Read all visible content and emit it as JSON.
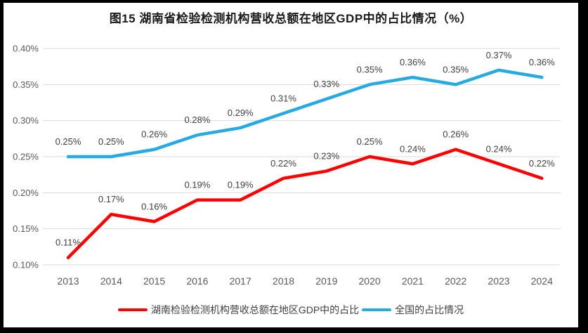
{
  "frame": {
    "border_color": "#000000",
    "canvas_background": "#FFFFFF"
  },
  "chart_data": {
    "type": "line",
    "title": "图15 湖南省检验检测机构营收总额在地区GDP中的占比情况（%）",
    "unit": "%",
    "categories": [
      "2013",
      "2014",
      "2015",
      "2016",
      "2017",
      "2018",
      "2019",
      "2020",
      "2021",
      "2022",
      "2023",
      "2024"
    ],
    "series": [
      {
        "name": "湖南检验检测机构营收总额在地区GDP中的占比",
        "color": "#FF0000",
        "values": [
          0.11,
          0.17,
          0.16,
          0.19,
          0.19,
          0.22,
          0.23,
          0.25,
          0.24,
          0.26,
          0.24,
          0.22
        ],
        "point_labels": [
          "0.11%",
          "0.17%",
          "0.16%",
          "0.19%",
          "0.19%",
          "0.22%",
          "0.23%",
          "0.25%",
          "0.24%",
          "0.26%",
          "0.24%",
          "0.22%"
        ]
      },
      {
        "name": "全国的占比情况",
        "color": "#27A9E1",
        "values": [
          0.25,
          0.25,
          0.26,
          0.28,
          0.29,
          0.31,
          0.33,
          0.35,
          0.36,
          0.35,
          0.37,
          0.36
        ],
        "point_labels": [
          "0.25%",
          "0.25%",
          "0.26%",
          "0.28%",
          "0.29%",
          "0.31%",
          "0.33%",
          "0.35%",
          "0.36%",
          "0.35%",
          "0.37%",
          "0.36%"
        ]
      }
    ],
    "y_axis": {
      "min": 0.1,
      "max": 0.4,
      "step": 0.05,
      "tick_labels": [
        "0.40%",
        "0.35%",
        "0.30%",
        "0.25%",
        "0.20%",
        "0.15%",
        "0.10%"
      ]
    },
    "x_axis": {
      "tick_labels": [
        "2013",
        "2014",
        "2015",
        "2016",
        "2017",
        "2018",
        "2019",
        "2020",
        "2021",
        "2022",
        "2023",
        "2024"
      ]
    },
    "grid": true,
    "legend_position": "bottom",
    "styles": {
      "grid_color": "#D9D9D9",
      "axis_text_color": "#595959",
      "data_label_color": "#404040",
      "legend_text_color": "#404040",
      "title_color": "#1A1A1A"
    }
  }
}
